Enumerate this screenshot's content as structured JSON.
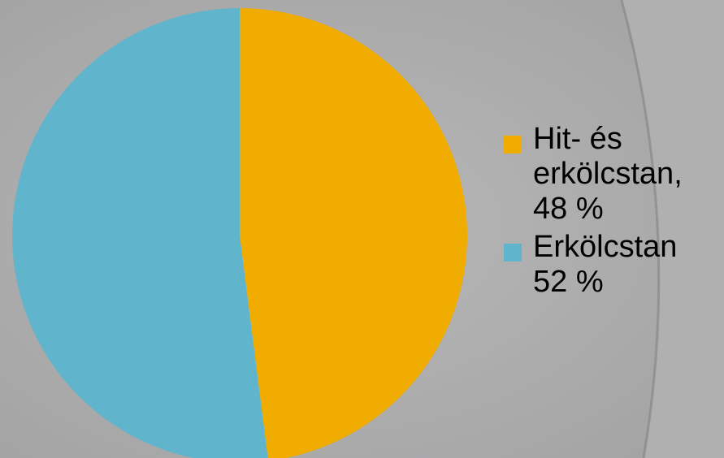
{
  "colors": {
    "background": "#a9a9aa",
    "background_light": "#b6b6b7",
    "background_edge": "#8a8a8b"
  },
  "chart_data": {
    "type": "pie",
    "title": "",
    "start_angle_deg": 0,
    "direction": "clockwise",
    "slices": [
      {
        "label": "Hit- és\nerkölcstan,\n48 %",
        "value": 48,
        "color": "#f0ac00"
      },
      {
        "label": "Erkölcstan\n52 %",
        "value": 52,
        "color": "#60b5cc"
      }
    ],
    "legend_position": "right"
  }
}
